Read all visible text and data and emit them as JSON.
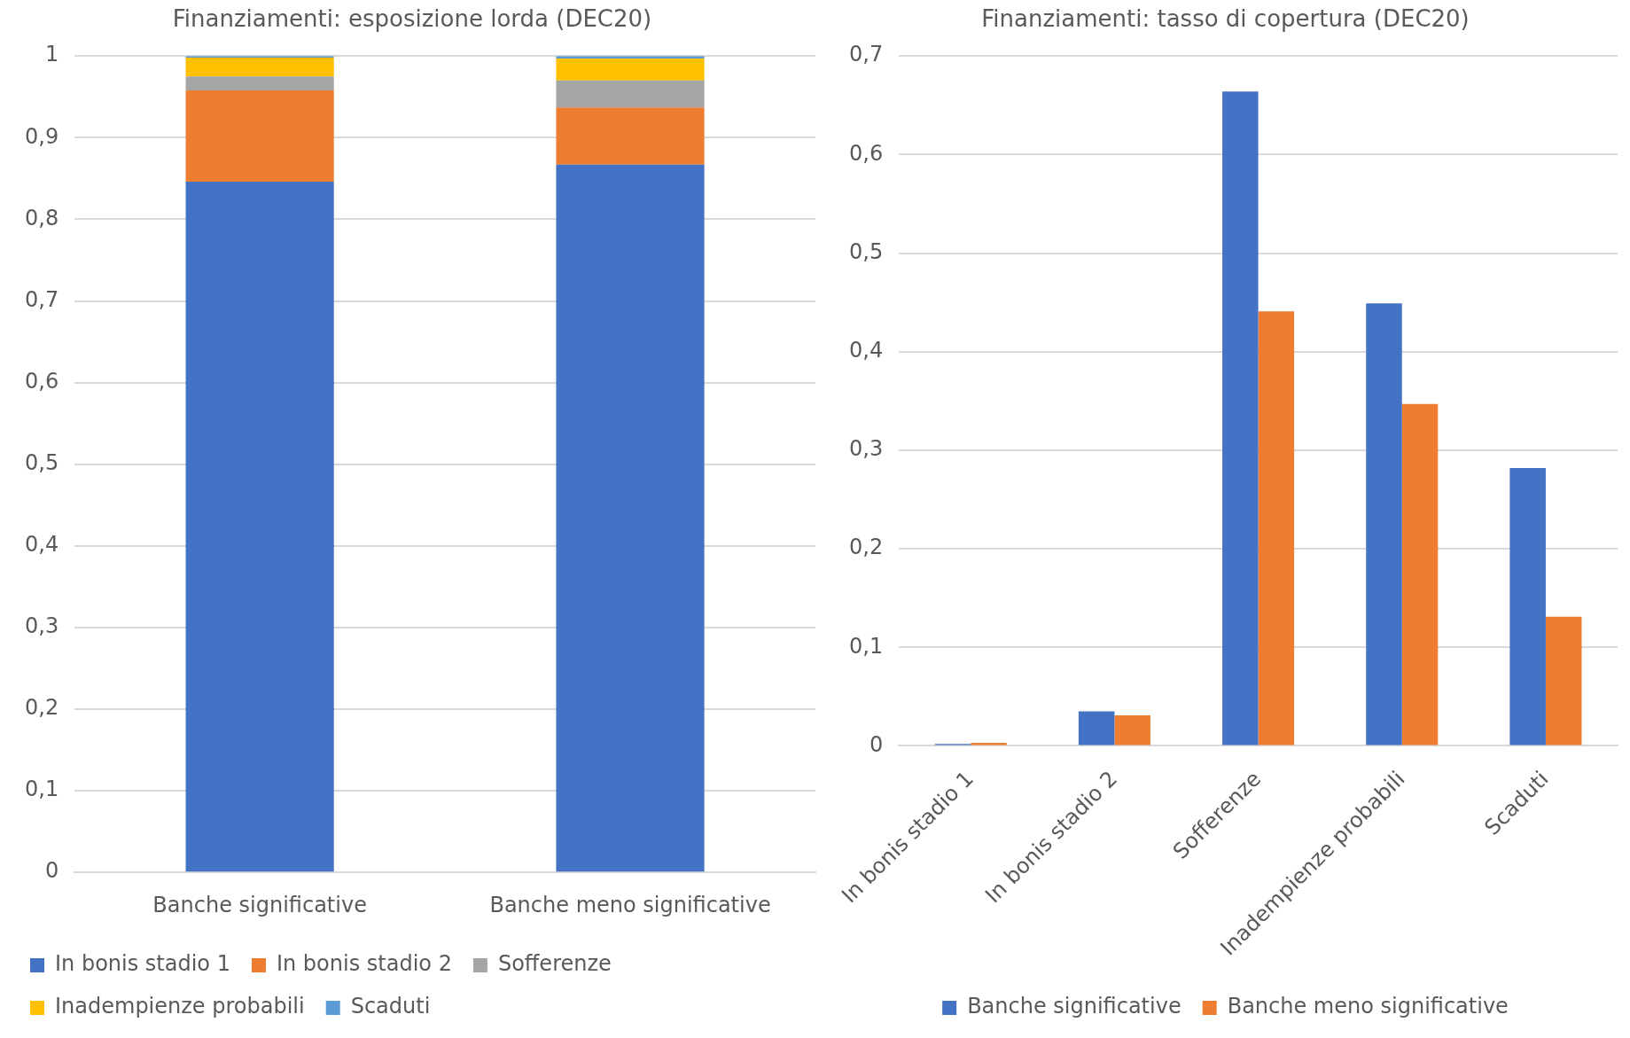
{
  "chart_data": [
    {
      "type": "bar",
      "title": "Finanziamenti: esposizione lorda (DEC20)",
      "categories": [
        "Banche significative",
        "Banche meno significative"
      ],
      "stacked": true,
      "series": [
        {
          "name": "In bonis stadio 1",
          "color": "#4472c4",
          "values": [
            0.846,
            0.867
          ]
        },
        {
          "name": "In bonis stadio 2",
          "color": "#ed7d31",
          "values": [
            0.112,
            0.07
          ]
        },
        {
          "name": "Sofferenze",
          "color": "#a5a5a5",
          "values": [
            0.017,
            0.033
          ]
        },
        {
          "name": "Inadempienze probabili",
          "color": "#ffc000",
          "values": [
            0.023,
            0.027
          ]
        },
        {
          "name": "Scaduti",
          "color": "#5b9bd5",
          "values": [
            0.002,
            0.003
          ]
        }
      ],
      "ylim": [
        0,
        1
      ],
      "yticks": [
        {
          "value": 0,
          "label": "0"
        },
        {
          "value": 0.1,
          "label": "0,1"
        },
        {
          "value": 0.2,
          "label": "0,2"
        },
        {
          "value": 0.3,
          "label": "0,3"
        },
        {
          "value": 0.4,
          "label": "0,4"
        },
        {
          "value": 0.5,
          "label": "0,5"
        },
        {
          "value": 0.6,
          "label": "0,6"
        },
        {
          "value": 0.7,
          "label": "0,7"
        },
        {
          "value": 0.8,
          "label": "0,8"
        },
        {
          "value": 0.9,
          "label": "0,9"
        },
        {
          "value": 1,
          "label": "1"
        }
      ],
      "grid": "y",
      "legend": "bottom"
    },
    {
      "type": "bar",
      "title": "Finanziamenti: tasso di copertura (DEC20)",
      "categories": [
        "In bonis stadio 1",
        "In bonis stadio 2",
        "Sofferenze",
        "Inadempienze probabili",
        "Scaduti"
      ],
      "series": [
        {
          "name": "Banche significative",
          "color": "#4472c4",
          "values": [
            0.002,
            0.035,
            0.664,
            0.449,
            0.282
          ]
        },
        {
          "name": "Banche meno significative",
          "color": "#ed7d31",
          "values": [
            0.003,
            0.031,
            0.441,
            0.347,
            0.131
          ]
        }
      ],
      "ylim": [
        0,
        0.7
      ],
      "yticks": [
        {
          "value": 0,
          "label": "0"
        },
        {
          "value": 0.1,
          "label": "0,1"
        },
        {
          "value": 0.2,
          "label": "0,2"
        },
        {
          "value": 0.3,
          "label": "0,3"
        },
        {
          "value": 0.4,
          "label": "0,4"
        },
        {
          "value": 0.5,
          "label": "0,5"
        },
        {
          "value": 0.6,
          "label": "0,6"
        },
        {
          "value": 0.7,
          "label": "0,7"
        }
      ],
      "grid": "y",
      "legend": "bottom"
    }
  ]
}
